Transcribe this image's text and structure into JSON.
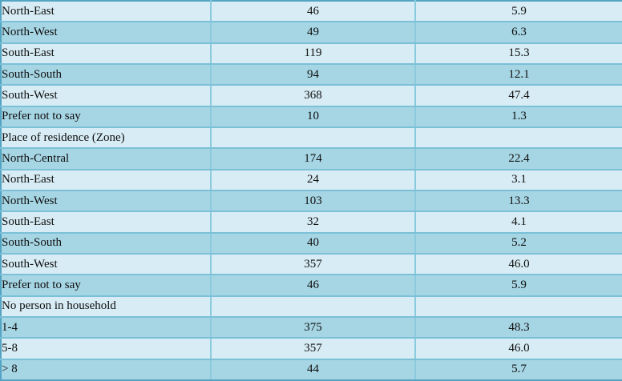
{
  "table": {
    "rows": [
      {
        "label": "North-East",
        "frequency": "46",
        "percentage": "5.9",
        "section": false
      },
      {
        "label": "North-West",
        "frequency": "49",
        "percentage": "6.3",
        "section": false
      },
      {
        "label": "South-East",
        "frequency": "119",
        "percentage": "15.3",
        "section": false
      },
      {
        "label": "South-South",
        "frequency": "94",
        "percentage": "12.1",
        "section": false
      },
      {
        "label": "South-West",
        "frequency": "368",
        "percentage": "47.4",
        "section": false
      },
      {
        "label": "Prefer not to say",
        "frequency": "10",
        "percentage": "1.3",
        "section": false
      },
      {
        "label": "Place of residence (Zone)",
        "frequency": "",
        "percentage": "",
        "section": true
      },
      {
        "label": "North-Central",
        "frequency": "174",
        "percentage": "22.4",
        "section": false
      },
      {
        "label": "North-East",
        "frequency": "24",
        "percentage": "3.1",
        "section": false
      },
      {
        "label": "North-West",
        "frequency": "103",
        "percentage": "13.3",
        "section": false
      },
      {
        "label": "South-East",
        "frequency": "32",
        "percentage": "4.1",
        "section": false
      },
      {
        "label": "South-South",
        "frequency": "40",
        "percentage": "5.2",
        "section": false
      },
      {
        "label": "South-West",
        "frequency": "357",
        "percentage": "46.0",
        "section": false
      },
      {
        "label": "Prefer not to say",
        "frequency": "46",
        "percentage": "5.9",
        "section": false
      },
      {
        "label": "No person in household",
        "frequency": "",
        "percentage": "",
        "section": true
      },
      {
        "label": "1-4",
        "frequency": "375",
        "percentage": "48.3",
        "section": false
      },
      {
        "label": "5-8",
        "frequency": "357",
        "percentage": "46.0",
        "section": false
      },
      {
        "label": "> 8",
        "frequency": "44",
        "percentage": "5.7",
        "section": false
      }
    ]
  },
  "colors": {
    "row_light": "#d7ecf4",
    "row_dark": "#a6d5e4",
    "grid_line": "#7cc0d7",
    "grid_line_v": "#8ccbdd",
    "outer_border": "#54a5c4",
    "text": "#101010"
  }
}
